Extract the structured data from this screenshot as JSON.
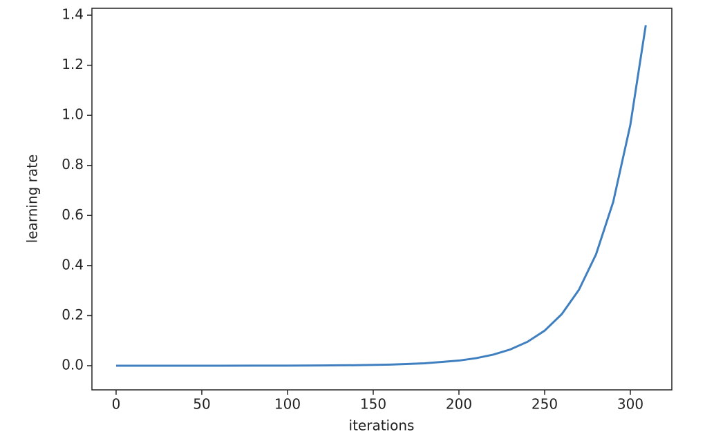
{
  "chart_data": {
    "type": "line",
    "xlabel": "iterations",
    "ylabel": "learning rate",
    "x": [
      0,
      20,
      40,
      60,
      80,
      100,
      120,
      140,
      160,
      180,
      200,
      210,
      220,
      230,
      240,
      250,
      260,
      270,
      280,
      290,
      300,
      309
    ],
    "series": [
      {
        "color": "#3f7fbf",
        "values": [
          1e-05,
          2e-05,
          4e-05,
          0.0001,
          0.0002,
          0.0004,
          0.0009,
          0.002,
          0.0044,
          0.0095,
          0.0205,
          0.0301,
          0.0442,
          0.065,
          0.0955,
          0.14,
          0.206,
          0.303,
          0.445,
          0.654,
          0.962,
          1.36
        ]
      }
    ],
    "xlim": [
      -14.1,
      324.2
    ],
    "ylim": [
      -0.0965,
      1.4276
    ],
    "xticks": [
      0,
      50,
      100,
      150,
      200,
      250,
      300
    ],
    "yticks": [
      {
        "value": 0,
        "label": "0.0"
      },
      0.2,
      0.4,
      0.6,
      0.8,
      {
        "value": 1,
        "label": "1.0"
      },
      1.2,
      1.4
    ],
    "grid": false
  }
}
